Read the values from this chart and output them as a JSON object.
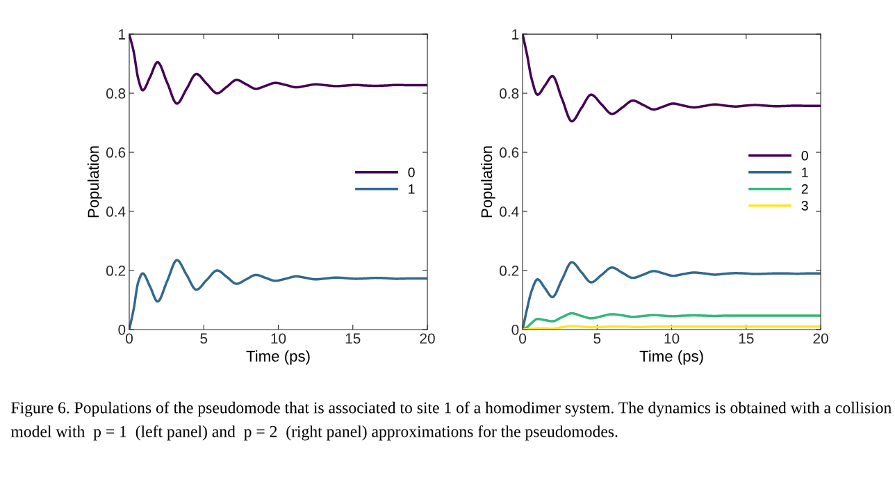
{
  "chart_data": [
    {
      "type": "line",
      "xlabel": "Time (ps)",
      "ylabel": "Population",
      "xlim": [
        0,
        20
      ],
      "xticks": [
        0,
        5,
        10,
        15,
        20
      ],
      "ylim": [
        0,
        1
      ],
      "yticks": [
        0,
        0.2,
        0.4,
        0.6,
        0.8,
        1
      ],
      "legend": "center right",
      "grid": false,
      "x": [
        0,
        0.3,
        0.6,
        0.9,
        1.4,
        1.9,
        2.55,
        3.2,
        3.85,
        4.5,
        5.2,
        5.9,
        6.55,
        7.2,
        7.85,
        8.5,
        9.15,
        9.8,
        10.5,
        11.2,
        11.85,
        12.5,
        13.2,
        13.9,
        14.55,
        15.2,
        15.85,
        16.5,
        17.2,
        17.9,
        19,
        20
      ],
      "series": [
        {
          "name": "0",
          "color": "#440154",
          "values": [
            1,
            0.94,
            0.85,
            0.81,
            0.855,
            0.905,
            0.835,
            0.765,
            0.815,
            0.865,
            0.832,
            0.8,
            0.822,
            0.845,
            0.83,
            0.815,
            0.825,
            0.835,
            0.828,
            0.82,
            0.825,
            0.83,
            0.827,
            0.824,
            0.826,
            0.828,
            0.826,
            0.825,
            0.826,
            0.828,
            0.827,
            0.827
          ]
        },
        {
          "name": "1",
          "color": "#31688e",
          "values": [
            0,
            0.07,
            0.16,
            0.19,
            0.145,
            0.095,
            0.165,
            0.235,
            0.185,
            0.135,
            0.168,
            0.2,
            0.178,
            0.155,
            0.17,
            0.185,
            0.175,
            0.165,
            0.172,
            0.18,
            0.175,
            0.17,
            0.173,
            0.176,
            0.174,
            0.172,
            0.173,
            0.175,
            0.174,
            0.172,
            0.173,
            0.173
          ]
        }
      ]
    },
    {
      "type": "line",
      "xlabel": "Time (ps)",
      "ylabel": "Population",
      "xlim": [
        0,
        20
      ],
      "xticks": [
        0,
        5,
        10,
        15,
        20
      ],
      "ylim": [
        0,
        1
      ],
      "yticks": [
        0,
        0.2,
        0.4,
        0.6,
        0.8,
        1
      ],
      "legend": "center right",
      "grid": false,
      "x": [
        0,
        0.3,
        0.6,
        1.0,
        1.5,
        2.0,
        2.65,
        3.3,
        3.95,
        4.6,
        5.3,
        6.0,
        6.7,
        7.4,
        8.1,
        8.8,
        9.45,
        10.1,
        10.8,
        11.5,
        12.2,
        12.9,
        13.6,
        14.3,
        14.95,
        15.6,
        16.3,
        17,
        17.7,
        18.4,
        19.2,
        20
      ],
      "series": [
        {
          "name": "0",
          "color": "#440154",
          "values": [
            1,
            0.93,
            0.85,
            0.795,
            0.826,
            0.858,
            0.78,
            0.705,
            0.75,
            0.795,
            0.762,
            0.73,
            0.752,
            0.775,
            0.76,
            0.745,
            0.755,
            0.765,
            0.758,
            0.752,
            0.757,
            0.762,
            0.758,
            0.755,
            0.758,
            0.76,
            0.758,
            0.756,
            0.757,
            0.758,
            0.757,
            0.757
          ]
        },
        {
          "name": "1",
          "color": "#31688e",
          "values": [
            0,
            0.07,
            0.13,
            0.17,
            0.14,
            0.11,
            0.17,
            0.228,
            0.194,
            0.16,
            0.185,
            0.21,
            0.192,
            0.175,
            0.186,
            0.198,
            0.19,
            0.182,
            0.188,
            0.193,
            0.19,
            0.186,
            0.189,
            0.191,
            0.19,
            0.188,
            0.189,
            0.19,
            0.19,
            0.189,
            0.19,
            0.19
          ]
        },
        {
          "name": "2",
          "color": "#35b779",
          "values": [
            0,
            0.008,
            0.022,
            0.036,
            0.032,
            0.028,
            0.042,
            0.055,
            0.046,
            0.038,
            0.045,
            0.052,
            0.048,
            0.043,
            0.046,
            0.049,
            0.047,
            0.045,
            0.047,
            0.048,
            0.047,
            0.046,
            0.047,
            0.047,
            0.047,
            0.047,
            0.047,
            0.047,
            0.047,
            0.047,
            0.047,
            0.047
          ]
        },
        {
          "name": "3",
          "color": "#fde725",
          "values": [
            0,
            0.001,
            0.002,
            0.004,
            0.004,
            0.003,
            0.008,
            0.012,
            0.01,
            0.008,
            0.009,
            0.01,
            0.01,
            0.009,
            0.009,
            0.01,
            0.01,
            0.01,
            0.01,
            0.01,
            0.01,
            0.01,
            0.01,
            0.01,
            0.01,
            0.01,
            0.01,
            0.01,
            0.01,
            0.01,
            0.01,
            0.01
          ]
        }
      ],
      "annotations": [
        "Figure 6. Populations of the pseudomode that is associated to site 1 of a homodimer system. The dynamics is obtained with a collision model with  p = 1  (left panel) and  p = 2  (right panel) approximations for the pseudomodes."
      ]
    }
  ]
}
